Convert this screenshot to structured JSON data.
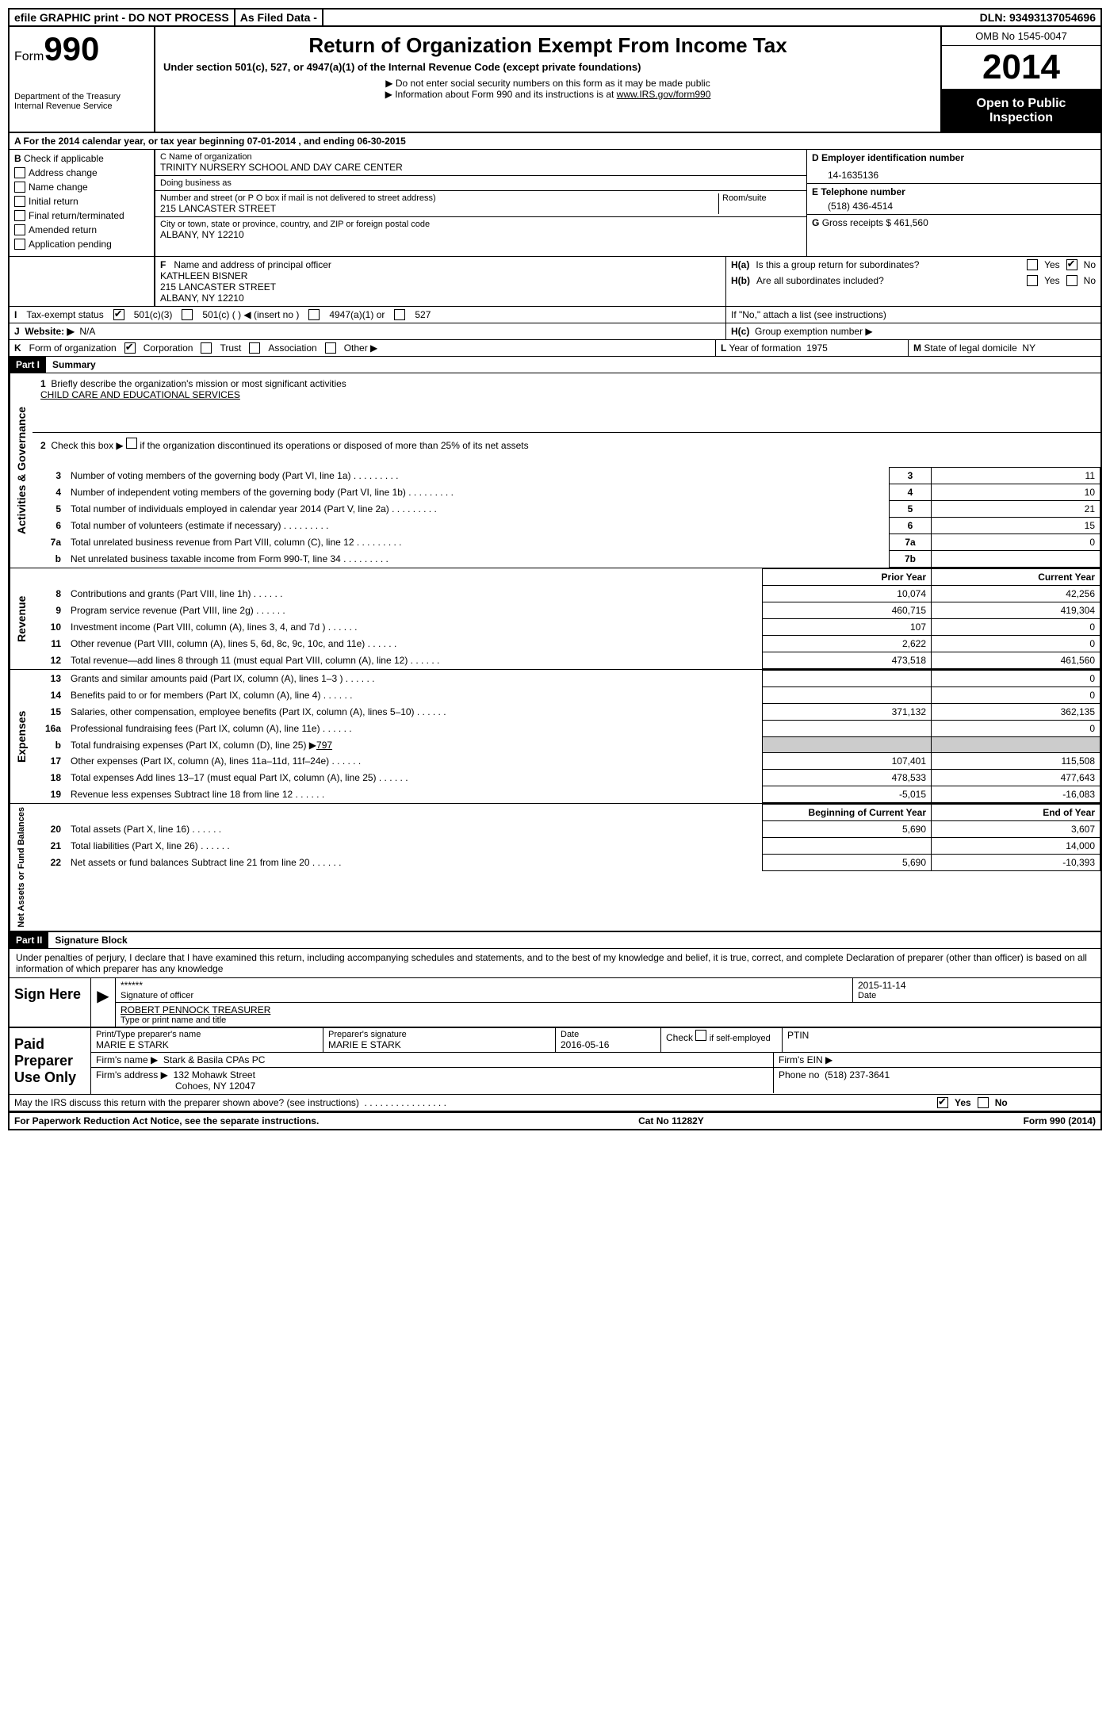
{
  "top": {
    "efile": "efile GRAPHIC print - DO NOT PROCESS",
    "asfiled": "As Filed Data -",
    "dln_label": "DLN:",
    "dln": "93493137054696"
  },
  "header": {
    "form_word": "Form",
    "form_num": "990",
    "dept": "Department of the Treasury",
    "irs": "Internal Revenue Service",
    "title": "Return of Organization Exempt From Income Tax",
    "subtitle": "Under section 501(c), 527, or 4947(a)(1) of the Internal Revenue Code (except private foundations)",
    "note1": "▶ Do not enter social security numbers on this form as it may be made public",
    "note2_pre": "▶ Information about Form 990 and its instructions is at ",
    "note2_link": "www.IRS.gov/form990",
    "omb": "OMB No 1545-0047",
    "year": "2014",
    "open": "Open to Public Inspection"
  },
  "rowA": {
    "text_pre": "A  For the 2014 calendar year, or tax year beginning ",
    "begin": "07-01-2014",
    "mid": " , and ending ",
    "end": "06-30-2015"
  },
  "B": {
    "label": "B",
    "check": "Check if applicable",
    "items": [
      "Address change",
      "Name change",
      "Initial return",
      "Final return/terminated",
      "Amended return",
      "Application pending"
    ]
  },
  "C": {
    "name_label": "C Name of organization",
    "name": "TRINITY NURSERY SCHOOL AND DAY CARE CENTER",
    "dba_label": "Doing business as",
    "dba": "",
    "street_label": "Number and street (or P O box if mail is not delivered to street address)",
    "room_label": "Room/suite",
    "street": "215 LANCASTER STREET",
    "city_label": "City or town, state or province, country, and ZIP or foreign postal code",
    "city": "ALBANY, NY  12210"
  },
  "D": {
    "label": "D Employer identification number",
    "value": "14-1635136"
  },
  "E": {
    "label": "E Telephone number",
    "value": "(518) 436-4514"
  },
  "G": {
    "label": "G",
    "text": "Gross receipts $",
    "value": "461,560"
  },
  "F": {
    "label": "F",
    "text": "Name and address of principal officer",
    "name": "KATHLEEN BISNER",
    "street": "215 LANCASTER STREET",
    "city": "ALBANY, NY  12210"
  },
  "H": {
    "a_label": "H(a)",
    "a_text": "Is this a group return for subordinates?",
    "b_label": "H(b)",
    "b_text": "Are all subordinates included?",
    "b_note": "If \"No,\" attach a list (see instructions)",
    "c_label": "H(c)",
    "c_text": "Group exemption number ▶",
    "yes": "Yes",
    "no": "No"
  },
  "I": {
    "label": "I",
    "text": "Tax-exempt status",
    "opt1": "501(c)(3)",
    "opt2": "501(c) (   ) ◀ (insert no )",
    "opt3": "4947(a)(1) or",
    "opt4": "527"
  },
  "J": {
    "label": "J",
    "text": "Website: ▶",
    "value": "N/A"
  },
  "K": {
    "label": "K",
    "text": "Form of organization",
    "opts": [
      "Corporation",
      "Trust",
      "Association",
      "Other ▶"
    ]
  },
  "L": {
    "label": "L",
    "text": "Year of formation",
    "value": "1975"
  },
  "M": {
    "label": "M",
    "text": "State of legal domicile",
    "value": "NY"
  },
  "partI": {
    "header": "Part I",
    "title": "Summary"
  },
  "summary": {
    "line1_label": "1",
    "line1_text": "Briefly describe the organization's mission or most significant activities",
    "line1_value": "CHILD CARE AND EDUCATIONAL SERVICES",
    "line2_label": "2",
    "line2_text": "Check this box ▶",
    "line2_suffix": "if the organization discontinued its operations or disposed of more than 25% of its net assets",
    "governance_label": "Activities & Governance",
    "revenue_label": "Revenue",
    "expenses_label": "Expenses",
    "netassets_label": "Net Assets or Fund Balances",
    "prior_year": "Prior Year",
    "current_year": "Current Year",
    "begin_year": "Beginning of Current Year",
    "end_year": "End of Year",
    "rows_gov": [
      {
        "n": "3",
        "d": "Number of voting members of the governing body (Part VI, line 1a)",
        "box": "3",
        "v": "11"
      },
      {
        "n": "4",
        "d": "Number of independent voting members of the governing body (Part VI, line 1b)",
        "box": "4",
        "v": "10"
      },
      {
        "n": "5",
        "d": "Total number of individuals employed in calendar year 2014 (Part V, line 2a)",
        "box": "5",
        "v": "21"
      },
      {
        "n": "6",
        "d": "Total number of volunteers (estimate if necessary)",
        "box": "6",
        "v": "15"
      },
      {
        "n": "7a",
        "d": "Total unrelated business revenue from Part VIII, column (C), line 12",
        "box": "7a",
        "v": "0"
      },
      {
        "n": "b",
        "d": "Net unrelated business taxable income from Form 990-T, line 34",
        "box": "7b",
        "v": ""
      }
    ],
    "rows_rev": [
      {
        "n": "8",
        "d": "Contributions and grants (Part VIII, line 1h)",
        "py": "10,074",
        "cy": "42,256"
      },
      {
        "n": "9",
        "d": "Program service revenue (Part VIII, line 2g)",
        "py": "460,715",
        "cy": "419,304"
      },
      {
        "n": "10",
        "d": "Investment income (Part VIII, column (A), lines 3, 4, and 7d )",
        "py": "107",
        "cy": "0"
      },
      {
        "n": "11",
        "d": "Other revenue (Part VIII, column (A), lines 5, 6d, 8c, 9c, 10c, and 11e)",
        "py": "2,622",
        "cy": "0"
      },
      {
        "n": "12",
        "d": "Total revenue—add lines 8 through 11 (must equal Part VIII, column (A), line 12)",
        "py": "473,518",
        "cy": "461,560"
      }
    ],
    "rows_exp": [
      {
        "n": "13",
        "d": "Grants and similar amounts paid (Part IX, column (A), lines 1–3 )",
        "py": "",
        "cy": "0"
      },
      {
        "n": "14",
        "d": "Benefits paid to or for members (Part IX, column (A), line 4)",
        "py": "",
        "cy": "0"
      },
      {
        "n": "15",
        "d": "Salaries, other compensation, employee benefits (Part IX, column (A), lines 5–10)",
        "py": "371,132",
        "cy": "362,135"
      },
      {
        "n": "16a",
        "d": "Professional fundraising fees (Part IX, column (A), line 11e)",
        "py": "",
        "cy": "0"
      },
      {
        "n": "b",
        "d": "Total fundraising expenses (Part IX, column (D), line 25) ▶",
        "extra": "797",
        "shaded": true
      },
      {
        "n": "17",
        "d": "Other expenses (Part IX, column (A), lines 11a–11d, 11f–24e)",
        "py": "107,401",
        "cy": "115,508"
      },
      {
        "n": "18",
        "d": "Total expenses Add lines 13–17 (must equal Part IX, column (A), line 25)",
        "py": "478,533",
        "cy": "477,643"
      },
      {
        "n": "19",
        "d": "Revenue less expenses Subtract line 18 from line 12",
        "py": "-5,015",
        "cy": "-16,083"
      }
    ],
    "rows_net": [
      {
        "n": "20",
        "d": "Total assets (Part X, line 16)",
        "py": "5,690",
        "cy": "3,607"
      },
      {
        "n": "21",
        "d": "Total liabilities (Part X, line 26)",
        "py": "",
        "cy": "14,000"
      },
      {
        "n": "22",
        "d": "Net assets or fund balances Subtract line 21 from line 20",
        "py": "5,690",
        "cy": "-10,393"
      }
    ]
  },
  "partII": {
    "header": "Part II",
    "title": "Signature Block",
    "perjury": "Under penalties of perjury, I declare that I have examined this return, including accompanying schedules and statements, and to the best of my knowledge and belief, it is true, correct, and complete Declaration of preparer (other than officer) is based on all information of which preparer has any knowledge"
  },
  "sign": {
    "here": "Sign Here",
    "stars": "******",
    "sig_label": "Signature of officer",
    "date_label": "Date",
    "date": "2015-11-14",
    "name": "ROBERT PENNOCK TREASURER",
    "name_label": "Type or print name and title"
  },
  "paid": {
    "label": "Paid Preparer Use Only",
    "prep_name_label": "Print/Type preparer's name",
    "prep_name": "MARIE E STARK",
    "prep_sig_label": "Preparer's signature",
    "prep_sig": "MARIE E STARK",
    "prep_date_label": "Date",
    "prep_date": "2016-05-16",
    "check_label": "Check",
    "self_emp": "if self-employed",
    "ptin": "PTIN",
    "firm_name_label": "Firm's name    ▶",
    "firm_name": "Stark & Basila CPAs PC",
    "firm_ein_label": "Firm's EIN ▶",
    "firm_addr_label": "Firm's address ▶",
    "firm_addr1": "132 Mohawk Street",
    "firm_addr2": "Cohoes, NY 12047",
    "phone_label": "Phone no",
    "phone": "(518) 237-3641"
  },
  "discuss": {
    "text": "May the IRS discuss this return with the preparer shown above? (see instructions)",
    "yes": "Yes",
    "no": "No"
  },
  "footer": {
    "pra": "For Paperwork Reduction Act Notice, see the separate instructions.",
    "cat": "Cat No 11282Y",
    "form": "Form 990 (2014)"
  }
}
